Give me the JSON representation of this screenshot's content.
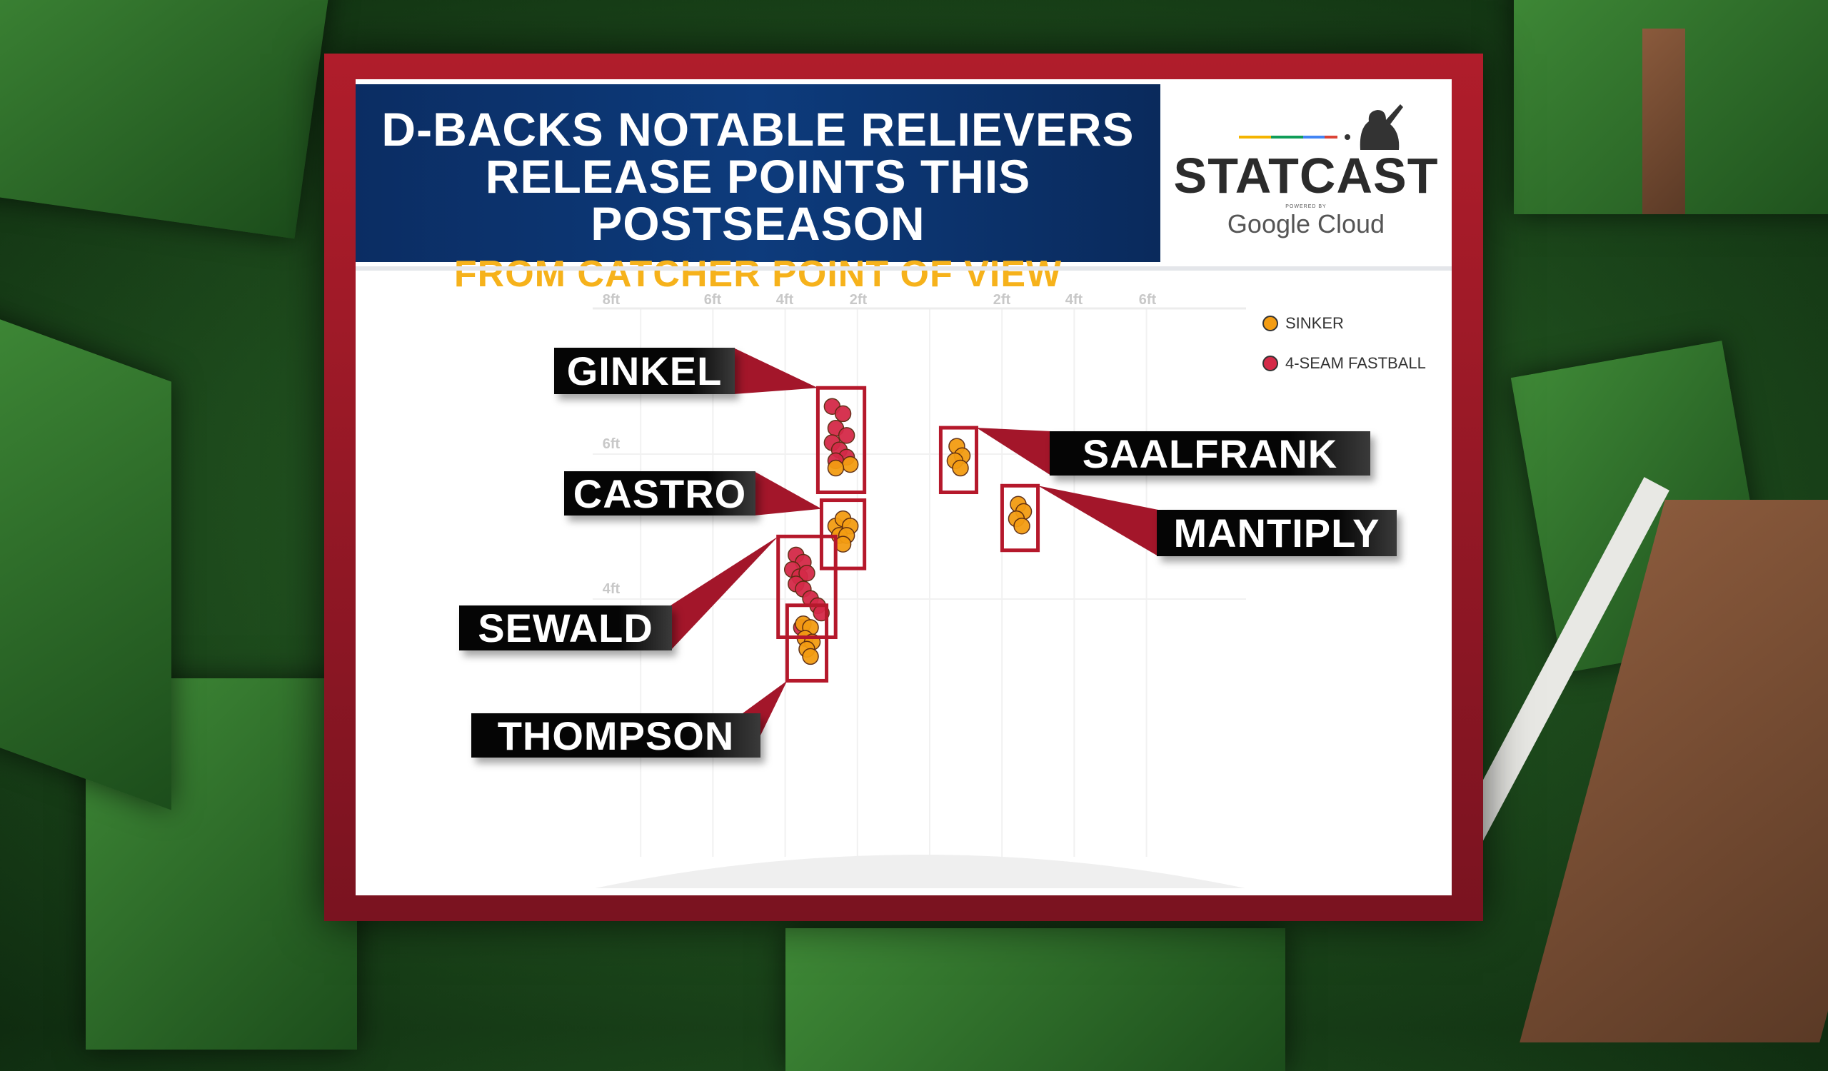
{
  "header": {
    "title_line1": "D-BACKS NOTABLE RELIEVERS",
    "title_line2": "RELEASE POINTS THIS POSTSEASON",
    "title_line3": "FROM CATCHER POINT OF VIEW"
  },
  "logo": {
    "brand": "STATCAST",
    "powered_by": "POWERED BY",
    "partner": "Google Cloud"
  },
  "colors": {
    "sinker": "#f39c12",
    "four_seam": "#d42a48",
    "box": "#b5182b",
    "banner": "#0d3b7c",
    "subtitle": "#f6b21b"
  },
  "chart_data": {
    "type": "scatter",
    "title": "",
    "x_tick_labels": [
      "8ft",
      "6ft",
      "4ft",
      "2ft",
      "2ft",
      "4ft",
      "6ft"
    ],
    "x_ticks": [
      -8,
      -6,
      -4,
      -2,
      2,
      4,
      6
    ],
    "y_tick_labels": [
      "6ft",
      "4ft"
    ],
    "y_ticks": [
      6,
      4
    ],
    "xlim": [
      -9,
      9
    ],
    "ylim": [
      0,
      7.5
    ],
    "grid": true,
    "legend": {
      "position": "top-right",
      "entries": [
        {
          "name": "SINKER",
          "color": "#f39c12"
        },
        {
          "name": "4-SEAM FASTBALL",
          "color": "#d42a48"
        }
      ]
    },
    "pitchers": [
      {
        "name": "GINKEL",
        "side": "left",
        "points": [
          {
            "x": -2.7,
            "y": 6.5,
            "pitch": "4-SEAM FASTBALL"
          },
          {
            "x": -2.4,
            "y": 6.4,
            "pitch": "4-SEAM FASTBALL"
          },
          {
            "x": -2.6,
            "y": 6.2,
            "pitch": "4-SEAM FASTBALL"
          },
          {
            "x": -2.3,
            "y": 6.1,
            "pitch": "4-SEAM FASTBALL"
          },
          {
            "x": -2.7,
            "y": 6.0,
            "pitch": "4-SEAM FASTBALL"
          },
          {
            "x": -2.5,
            "y": 5.9,
            "pitch": "4-SEAM FASTBALL"
          },
          {
            "x": -2.3,
            "y": 5.8,
            "pitch": "4-SEAM FASTBALL"
          },
          {
            "x": -2.6,
            "y": 5.75,
            "pitch": "4-SEAM FASTBALL"
          },
          {
            "x": -2.2,
            "y": 5.7,
            "pitch": "SINKER"
          },
          {
            "x": -2.6,
            "y": 5.65,
            "pitch": "SINKER"
          }
        ]
      },
      {
        "name": "CASTRO",
        "side": "left",
        "points": [
          {
            "x": -2.6,
            "y": 4.85,
            "pitch": "SINKER"
          },
          {
            "x": -2.4,
            "y": 4.95,
            "pitch": "SINKER"
          },
          {
            "x": -2.2,
            "y": 4.85,
            "pitch": "SINKER"
          },
          {
            "x": -2.5,
            "y": 4.72,
            "pitch": "SINKER"
          },
          {
            "x": -2.3,
            "y": 4.72,
            "pitch": "SINKER"
          },
          {
            "x": -2.4,
            "y": 4.6,
            "pitch": "SINKER"
          }
        ]
      },
      {
        "name": "SEWALD",
        "side": "left",
        "points": [
          {
            "x": -3.7,
            "y": 4.45,
            "pitch": "4-SEAM FASTBALL"
          },
          {
            "x": -3.5,
            "y": 4.35,
            "pitch": "4-SEAM FASTBALL"
          },
          {
            "x": -3.8,
            "y": 4.25,
            "pitch": "4-SEAM FASTBALL"
          },
          {
            "x": -3.6,
            "y": 4.15,
            "pitch": "4-SEAM FASTBALL"
          },
          {
            "x": -3.4,
            "y": 4.2,
            "pitch": "4-SEAM FASTBALL"
          },
          {
            "x": -3.7,
            "y": 4.05,
            "pitch": "4-SEAM FASTBALL"
          },
          {
            "x": -3.5,
            "y": 3.98,
            "pitch": "4-SEAM FASTBALL"
          },
          {
            "x": -3.3,
            "y": 3.85,
            "pitch": "4-SEAM FASTBALL"
          },
          {
            "x": -3.1,
            "y": 3.75,
            "pitch": "4-SEAM FASTBALL"
          },
          {
            "x": -3.0,
            "y": 3.65,
            "pitch": "4-SEAM FASTBALL"
          }
        ]
      },
      {
        "name": "THOMPSON",
        "side": "left",
        "points": [
          {
            "x": -3.55,
            "y": 3.45,
            "pitch": "4-SEAM FASTBALL"
          },
          {
            "x": -3.5,
            "y": 3.5,
            "pitch": "SINKER"
          },
          {
            "x": -3.3,
            "y": 3.45,
            "pitch": "SINKER"
          },
          {
            "x": -3.45,
            "y": 3.3,
            "pitch": "SINKER"
          },
          {
            "x": -3.25,
            "y": 3.25,
            "pitch": "SINKER"
          },
          {
            "x": -3.4,
            "y": 3.15,
            "pitch": "SINKER"
          },
          {
            "x": -3.3,
            "y": 3.05,
            "pitch": "SINKER"
          }
        ]
      },
      {
        "name": "SAALFRANK",
        "side": "right",
        "points": [
          {
            "x": 0.75,
            "y": 5.95,
            "pitch": "SINKER"
          },
          {
            "x": 0.9,
            "y": 5.82,
            "pitch": "SINKER"
          },
          {
            "x": 0.7,
            "y": 5.75,
            "pitch": "SINKER"
          },
          {
            "x": 0.85,
            "y": 5.65,
            "pitch": "SINKER"
          }
        ]
      },
      {
        "name": "MANTIPLY",
        "side": "right",
        "points": [
          {
            "x": 2.45,
            "y": 5.15,
            "pitch": "SINKER"
          },
          {
            "x": 2.6,
            "y": 5.05,
            "pitch": "SINKER"
          },
          {
            "x": 2.4,
            "y": 4.95,
            "pitch": "SINKER"
          },
          {
            "x": 2.55,
            "y": 4.85,
            "pitch": "SINKER"
          }
        ]
      }
    ]
  }
}
